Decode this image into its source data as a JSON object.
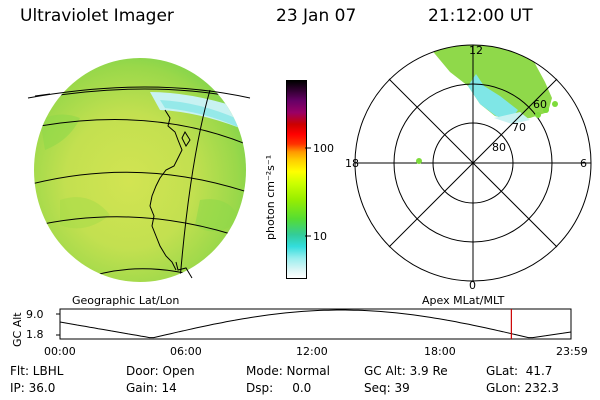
{
  "header": {
    "instrument": "Ultraviolet Imager",
    "date": "23 Jan 07",
    "time": "21:12:00 UT"
  },
  "colors": {
    "image_green": "#8fd94a",
    "image_yellow": "#d8e85a",
    "image_cyan": "#7fe6e6",
    "image_light": "#c8f2f2",
    "point_green": "#7ddb3a"
  },
  "geo_panel": {
    "label": "Geographic Lat/Lon"
  },
  "colorbar": {
    "unit": "photon cm⁻²s⁻¹",
    "ticks": [
      "100",
      "10"
    ],
    "colors_top_to_bottom": [
      "#000000",
      "#330033",
      "#660066",
      "#990066",
      "#cc0000",
      "#ff0000",
      "#ff3300",
      "#ff9900",
      "#ffcc00",
      "#ffff00",
      "#ccff00",
      "#99ee00",
      "#55dd33",
      "#33cc99",
      "#33dddd",
      "#99eeee",
      "#ddf6f6",
      "#ffffff"
    ]
  },
  "polar_panel": {
    "label": "Apex MLat/MLT",
    "mlt_labels": {
      "top": "12",
      "right": "6",
      "bottom": "0",
      "left": "18"
    },
    "lat_labels": [
      "60",
      "70",
      "80"
    ]
  },
  "altitude_plot": {
    "y_title": "GC Alt",
    "y_ticks": [
      "9.0",
      "1.8"
    ],
    "x_ticks": [
      "00:00",
      "06:00",
      "12:00",
      "18:00",
      "23:59"
    ],
    "curve_color": "#000000",
    "marker_color": "#cc0000",
    "marker_time_fraction": 0.8833
  },
  "info": {
    "flt": "Flt: LBHL",
    "ip": "IP: 36.0",
    "door": "Door: Open",
    "gain": "Gain: 14",
    "mode": "Mode: Normal",
    "dsp": "Dsp:     0.0",
    "gc_alt": "GC Alt: 3.9 Re",
    "seq": "Seq: 39",
    "glat": "GLat:  41.7",
    "glon": "GLon: 232.3"
  }
}
